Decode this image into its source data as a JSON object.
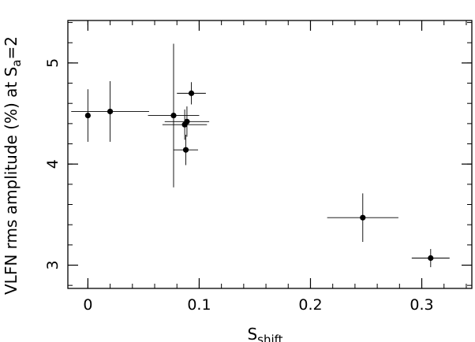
{
  "chart_data": {
    "type": "scatter",
    "xlabel": {
      "main": "S",
      "sub": "shift"
    },
    "ylabel": {
      "main": "VLFN rms amplitude (%) at S",
      "sub": "a",
      "suffix": "=2"
    },
    "xlim": [
      -0.018,
      0.345
    ],
    "ylim": [
      2.77,
      5.42
    ],
    "x_ticks": [
      0,
      0.1,
      0.2,
      0.3
    ],
    "x_tick_labels": [
      "0",
      "0.1",
      "0.2",
      "0.3"
    ],
    "y_ticks": [
      3,
      4,
      5
    ],
    "y_tick_labels": [
      "3",
      "4",
      "5"
    ],
    "x_minor_step": 0.02,
    "y_minor_step": 0.2,
    "grid": false,
    "series": [
      {
        "points": [
          {
            "x": 0.0,
            "y": 4.48,
            "xerr": 0.0,
            "yerr": 0.26
          },
          {
            "x": 0.02,
            "y": 4.52,
            "xerr": 0.035,
            "yerr": 0.3
          },
          {
            "x": 0.077,
            "y": 4.48,
            "xerr": 0.023,
            "yerr": 0.71
          },
          {
            "x": 0.093,
            "y": 4.7,
            "xerr": 0.013,
            "yerr": 0.11
          },
          {
            "x": 0.089,
            "y": 4.42,
            "xerr": 0.02,
            "yerr": 0.15
          },
          {
            "x": 0.087,
            "y": 4.39,
            "xerr": 0.02,
            "yerr": 0.15
          },
          {
            "x": 0.088,
            "y": 4.14,
            "xerr": 0.011,
            "yerr": 0.15
          },
          {
            "x": 0.247,
            "y": 3.47,
            "xerr": 0.032,
            "yerr": 0.24
          },
          {
            "x": 0.308,
            "y": 3.07,
            "xerr": 0.017,
            "yerr": 0.09
          }
        ]
      }
    ]
  }
}
